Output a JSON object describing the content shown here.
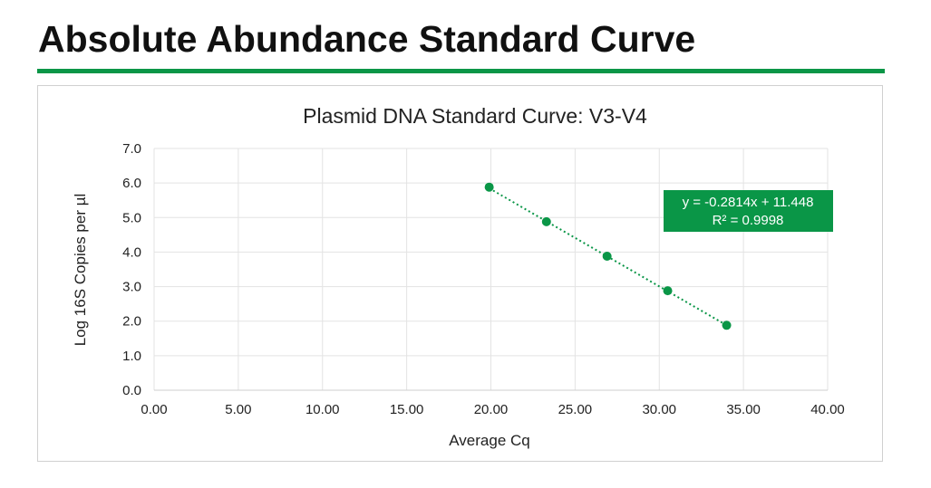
{
  "page": {
    "title": "Absolute Abundance Standard Curve"
  },
  "colors": {
    "accent": "#0a9647",
    "grid": "#e3e3e3",
    "text": "#222222"
  },
  "chart_data": {
    "type": "scatter",
    "title": "Plasmid DNA Standard Curve: V3-V4",
    "xlabel": "Average Cq",
    "ylabel": "Log 16S Copies per µl",
    "xlim": [
      0,
      40
    ],
    "ylim": [
      0,
      7
    ],
    "x_ticks": [
      "0.00",
      "5.00",
      "10.00",
      "15.00",
      "20.00",
      "25.00",
      "30.00",
      "35.00",
      "40.00"
    ],
    "y_ticks": [
      "0.0",
      "1.0",
      "2.0",
      "3.0",
      "4.0",
      "5.0",
      "6.0",
      "7.0"
    ],
    "grid": true,
    "series": [
      {
        "x": [
          19.9,
          23.3,
          26.9,
          30.5,
          34.0
        ],
        "y": [
          5.88,
          4.88,
          3.88,
          2.88,
          1.88
        ]
      }
    ],
    "trendline": {
      "type": "linear",
      "style": "dotted",
      "slope": -0.2814,
      "intercept": 11.448,
      "x_range": [
        19.9,
        34.0
      ]
    },
    "annotation": {
      "equation": "y = -0.2814x + 11.448",
      "r_squared": "R² = 0.9998"
    }
  }
}
